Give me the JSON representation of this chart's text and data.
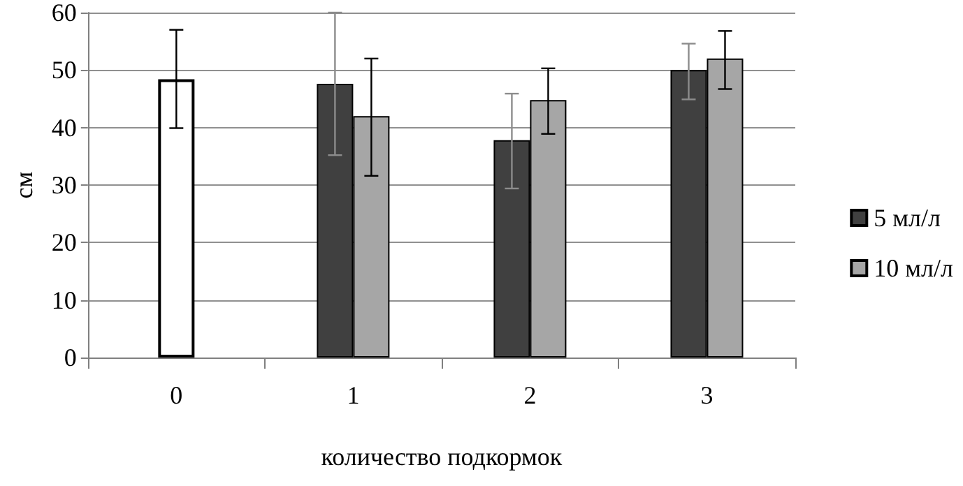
{
  "chart_data": {
    "type": "bar",
    "xlabel": "количество подкормок",
    "ylabel": "см",
    "categories": [
      "0",
      "1",
      "2",
      "3"
    ],
    "series": [
      {
        "name": "5 мл/л",
        "color": "#404040",
        "values": [
          null,
          47.6,
          37.8,
          50.0
        ],
        "errors": [
          null,
          [
            35.2,
            60
          ],
          [
            29.4,
            45.9
          ],
          [
            44.9,
            54.6
          ]
        ]
      },
      {
        "name": "10 мл/л",
        "color": "#a6a6a6",
        "values": [
          null,
          42.0,
          44.8,
          52.0
        ],
        "errors": [
          null,
          [
            31.6,
            52.0
          ],
          [
            38.9,
            50.3
          ],
          [
            46.7,
            56.8
          ]
        ]
      },
      {
        "color": "#ffffff",
        "values": [
          48.4,
          null,
          null,
          null
        ],
        "errors": [
          [
            39.9,
            57.0
          ],
          null,
          null,
          null
        ]
      }
    ],
    "ylim": [
      0,
      60
    ],
    "yticks": [
      0,
      10,
      20,
      30,
      40,
      50,
      60
    ],
    "grid": "y",
    "legend": "right"
  }
}
